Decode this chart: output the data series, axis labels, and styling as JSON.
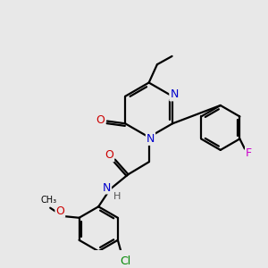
{
  "background_color": "#e8e8e8",
  "bond_color": "#000000",
  "atom_colors": {
    "N": "#0000cc",
    "O": "#cc0000",
    "F": "#cc00cc",
    "Cl": "#008800",
    "C": "#000000",
    "H": "#555555"
  },
  "figsize": [
    3.0,
    3.0
  ],
  "dpi": 100
}
